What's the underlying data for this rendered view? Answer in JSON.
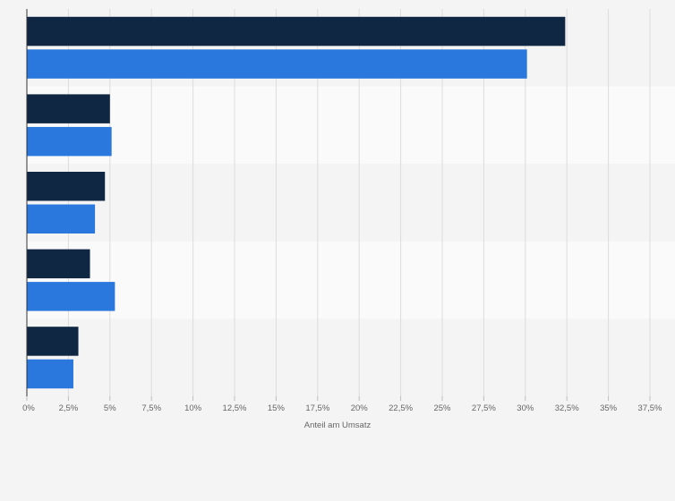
{
  "chart_data": {
    "type": "bar",
    "orientation": "horizontal",
    "title": "",
    "xlabel": "Anteil am Umsatz",
    "ylabel": "",
    "categories": [
      "",
      "",
      "",
      "",
      ""
    ],
    "series": [
      {
        "color": "#0f2742",
        "values": [
          32.4,
          5.0,
          4.7,
          3.8,
          3.1
        ]
      },
      {
        "color": "#2a77dd",
        "values": [
          30.1,
          5.1,
          4.1,
          5.3,
          2.8
        ]
      }
    ],
    "xlim": [
      0,
      37.5
    ],
    "ticks": [
      0,
      2.5,
      5,
      7.5,
      10,
      12.5,
      15,
      17.5,
      20,
      22.5,
      25,
      27.5,
      30,
      32.5,
      35,
      37.5
    ],
    "tick_labels": [
      "0%",
      "2,5%",
      "5%",
      "7,5%",
      "10%",
      "12,5%",
      "15%",
      "17,5%",
      "20%",
      "22,5%",
      "25%",
      "27,5%",
      "30%",
      "32,5%",
      "35%",
      "37,5%"
    ],
    "grid": true,
    "legend": "none",
    "colors": {
      "background": "#f4f4f4",
      "band_light": "#fafafa",
      "grid": "#dcdcdc",
      "axis": "#333333"
    }
  }
}
